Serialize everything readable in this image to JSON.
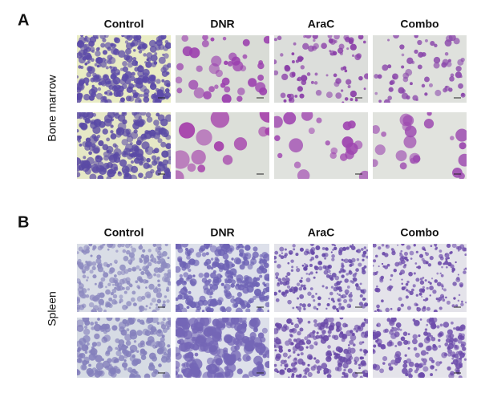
{
  "panels": [
    {
      "label": "A",
      "row_label": "Bone marrow",
      "columns": [
        "Control",
        "DNR",
        "AraC",
        "Combo"
      ]
    },
    {
      "label": "B",
      "row_label": "Spleen",
      "columns": [
        "Control",
        "DNR",
        "AraC",
        "Combo"
      ]
    }
  ]
}
